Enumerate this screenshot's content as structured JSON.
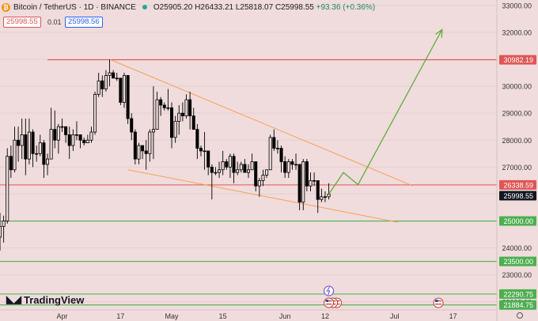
{
  "header": {
    "symbol": "Bitcoin / TetherUS · 1D · BINANCE",
    "open": "O25905.20",
    "high": "H26433.21",
    "low": "L25818.07",
    "close": "C25998.55",
    "change": "+93.36 (+0.36%)",
    "sell_price": "25998.55",
    "spread": "0.01",
    "buy_price": "25998.56"
  },
  "branding": {
    "logo_text": "TradingView"
  },
  "colors": {
    "background": "#f0dcdc",
    "bullish": "#000000",
    "bearish": "#000000",
    "resistance_line": "#e05555",
    "support_line": "#4caf50",
    "channel_line": "#f5a15a",
    "projection_arrow": "#5cad3c"
  },
  "chart_data": {
    "type": "candlestick",
    "symbol": "Bitcoin / TetherUS",
    "interval": "1D",
    "exchange": "BINANCE",
    "y_range": [
      21700,
      33200
    ],
    "y_ticks": [
      22000,
      23000,
      24000,
      25000,
      26000,
      27000,
      28000,
      29000,
      30000,
      31000,
      32000,
      33000
    ],
    "y_tick_labels": [
      "22000.00",
      "23000.00",
      "24000.00",
      "25000.00",
      "26000.00",
      "27000.00",
      "28000.00",
      "29000.00",
      "30000.00",
      "31000.00",
      "32000.00",
      "33000.00"
    ],
    "x_labels": [
      {
        "label": "Apr",
        "date": "2023-04-01"
      },
      {
        "label": "17",
        "date": "2023-04-17"
      },
      {
        "label": "May",
        "date": "2023-05-01"
      },
      {
        "label": "15",
        "date": "2023-05-15"
      },
      {
        "label": "Jun",
        "date": "2023-06-01"
      },
      {
        "label": "12",
        "date": "2023-06-12"
      },
      {
        "label": "Jul",
        "date": "2023-07-01"
      },
      {
        "label": "17",
        "date": "2023-07-17"
      }
    ],
    "x_range": [
      "2023-03-15",
      "2023-07-29"
    ],
    "candles": [
      [
        "2023-03-15",
        24400,
        25300,
        23900,
        24800
      ],
      [
        "2023-03-16",
        24800,
        25200,
        24200,
        25000
      ],
      [
        "2023-03-17",
        25000,
        27700,
        24900,
        27400
      ],
      [
        "2023-03-18",
        27400,
        27800,
        26600,
        26900
      ],
      [
        "2023-03-19",
        26900,
        28500,
        26800,
        28000
      ],
      [
        "2023-03-20",
        28000,
        28500,
        27200,
        27800
      ],
      [
        "2023-03-21",
        27800,
        28800,
        27300,
        28200
      ],
      [
        "2023-03-22",
        28200,
        28800,
        26700,
        27300
      ],
      [
        "2023-03-23",
        27300,
        28800,
        27100,
        28300
      ],
      [
        "2023-03-24",
        28300,
        28400,
        27000,
        27500
      ],
      [
        "2023-03-25",
        27500,
        27800,
        27200,
        27500
      ],
      [
        "2023-03-26",
        27500,
        28200,
        27400,
        27900
      ],
      [
        "2023-03-27",
        27900,
        28000,
        26600,
        27100
      ],
      [
        "2023-03-28",
        27100,
        27500,
        26700,
        27300
      ],
      [
        "2023-03-29",
        27300,
        29200,
        27300,
        28400
      ],
      [
        "2023-03-30",
        28400,
        29100,
        27700,
        28000
      ],
      [
        "2023-03-31",
        28000,
        28600,
        27500,
        28500
      ],
      [
        "2023-04-01",
        28500,
        28800,
        28300,
        28500
      ],
      [
        "2023-04-02",
        28500,
        28500,
        27900,
        28200
      ],
      [
        "2023-04-03",
        28200,
        28500,
        27300,
        27800
      ],
      [
        "2023-04-04",
        27800,
        28400,
        27600,
        28200
      ],
      [
        "2023-04-05",
        28200,
        28700,
        28000,
        28200
      ],
      [
        "2023-04-06",
        28200,
        28200,
        27700,
        28000
      ],
      [
        "2023-04-07",
        28000,
        28100,
        27800,
        27900
      ],
      [
        "2023-04-08",
        27900,
        28200,
        27900,
        28000
      ],
      [
        "2023-04-09",
        28000,
        28500,
        27900,
        28300
      ],
      [
        "2023-04-10",
        28300,
        29800,
        28200,
        29700
      ],
      [
        "2023-04-11",
        29700,
        30500,
        29600,
        30200
      ],
      [
        "2023-04-12",
        30200,
        30400,
        29600,
        29900
      ],
      [
        "2023-04-13",
        29900,
        30600,
        29800,
        30400
      ],
      [
        "2023-04-14",
        30400,
        31000,
        30000,
        30500
      ],
      [
        "2023-04-15",
        30500,
        30600,
        30300,
        30300
      ],
      [
        "2023-04-16",
        30300,
        30500,
        30200,
        30300
      ],
      [
        "2023-04-17",
        30300,
        30300,
        29300,
        29400
      ],
      [
        "2023-04-18",
        29400,
        30500,
        29200,
        30400
      ],
      [
        "2023-04-19",
        30400,
        30400,
        28600,
        28800
      ],
      [
        "2023-04-20",
        28800,
        29000,
        28000,
        28300
      ],
      [
        "2023-04-21",
        28300,
        28400,
        27100,
        27300
      ],
      [
        "2023-04-22",
        27300,
        27900,
        27100,
        27800
      ],
      [
        "2023-04-23",
        27800,
        27800,
        27300,
        27600
      ],
      [
        "2023-04-24",
        27600,
        28000,
        26900,
        27500
      ],
      [
        "2023-04-25",
        27500,
        28400,
        27200,
        28300
      ],
      [
        "2023-04-26",
        28300,
        30000,
        27300,
        28400
      ],
      [
        "2023-04-27",
        28400,
        29800,
        28400,
        29500
      ],
      [
        "2023-04-28",
        29500,
        29600,
        28900,
        29300
      ],
      [
        "2023-04-29",
        29300,
        29400,
        29100,
        29200
      ],
      [
        "2023-04-30",
        29200,
        29900,
        29100,
        29200
      ],
      [
        "2023-05-01",
        29200,
        29400,
        27700,
        28100
      ],
      [
        "2023-05-02",
        28100,
        28900,
        27900,
        28700
      ],
      [
        "2023-05-03",
        28700,
        29300,
        28200,
        29000
      ],
      [
        "2023-05-04",
        29000,
        29400,
        28700,
        28900
      ],
      [
        "2023-05-05",
        28900,
        29700,
        28800,
        29500
      ],
      [
        "2023-05-06",
        29500,
        29800,
        28400,
        28900
      ],
      [
        "2023-05-07",
        28900,
        29200,
        28400,
        28400
      ],
      [
        "2023-05-08",
        28400,
        28600,
        27300,
        27700
      ],
      [
        "2023-05-09",
        27700,
        27800,
        27400,
        27600
      ],
      [
        "2023-05-10",
        27600,
        28300,
        26900,
        27600
      ],
      [
        "2023-05-11",
        27600,
        27600,
        26700,
        27000
      ],
      [
        "2023-05-12",
        27000,
        27100,
        25800,
        26800
      ],
      [
        "2023-05-13",
        26800,
        27000,
        26700,
        26800
      ],
      [
        "2023-05-14",
        26800,
        27200,
        26600,
        26900
      ],
      [
        "2023-05-15",
        26900,
        27600,
        26700,
        27200
      ],
      [
        "2023-05-16",
        27200,
        27300,
        26900,
        27000
      ],
      [
        "2023-05-17",
        27000,
        27500,
        26600,
        27400
      ],
      [
        "2023-05-18",
        27400,
        27500,
        26400,
        26800
      ],
      [
        "2023-05-19",
        26800,
        27200,
        26700,
        26900
      ],
      [
        "2023-05-20",
        26900,
        27200,
        26800,
        27100
      ],
      [
        "2023-05-21",
        27100,
        27300,
        26800,
        26800
      ],
      [
        "2023-05-22",
        26800,
        27100,
        26600,
        26900
      ],
      [
        "2023-05-23",
        26900,
        27500,
        26900,
        27200
      ],
      [
        "2023-05-24",
        27200,
        27200,
        26100,
        26300
      ],
      [
        "2023-05-25",
        26300,
        26600,
        25900,
        26500
      ],
      [
        "2023-05-26",
        26500,
        26900,
        26300,
        26700
      ],
      [
        "2023-05-27",
        26700,
        26900,
        26600,
        26900
      ],
      [
        "2023-05-28",
        26900,
        28200,
        26900,
        28100
      ],
      [
        "2023-05-29",
        28100,
        28400,
        27600,
        27700
      ],
      [
        "2023-05-30",
        27700,
        28000,
        27500,
        27700
      ],
      [
        "2023-05-31",
        27700,
        27800,
        26800,
        27200
      ],
      [
        "2023-06-01",
        27200,
        27400,
        26600,
        26800
      ],
      [
        "2023-06-02",
        26800,
        27300,
        26600,
        27200
      ],
      [
        "2023-06-03",
        27200,
        27300,
        26900,
        27100
      ],
      [
        "2023-06-04",
        27100,
        27500,
        26900,
        27100
      ],
      [
        "2023-06-05",
        27100,
        27100,
        25400,
        25700
      ],
      [
        "2023-06-06",
        25700,
        27300,
        25400,
        27200
      ],
      [
        "2023-06-07",
        27200,
        27300,
        26100,
        26300
      ],
      [
        "2023-06-08",
        26300,
        26800,
        26100,
        26500
      ],
      [
        "2023-06-09",
        26500,
        26800,
        26300,
        26500
      ],
      [
        "2023-06-10",
        26500,
        26500,
        25300,
        25800
      ],
      [
        "2023-06-11",
        25800,
        26200,
        25700,
        25900
      ],
      [
        "2023-06-12",
        25900,
        26100,
        25700,
        25900
      ],
      [
        "2023-06-13",
        25900,
        26400,
        25800,
        25998.55
      ]
    ],
    "horizontal_levels": [
      {
        "price": 30982.19,
        "label": "30982.19",
        "kind": "resistance"
      },
      {
        "price": 26338.59,
        "label": "26338.59",
        "kind": "resistance"
      },
      {
        "price": 25000.0,
        "label": "25000.00",
        "kind": "support"
      },
      {
        "price": 23500.0,
        "label": "23500.00",
        "kind": "support"
      },
      {
        "price": 22290.75,
        "label": "22290.75",
        "kind": "support"
      },
      {
        "price": 21884.75,
        "label": "21884.75",
        "kind": "support"
      }
    ],
    "current_price": {
      "price": 25998.55,
      "label": "25998.55"
    },
    "channel": [
      {
        "from": [
          "2023-04-14",
          31000
        ],
        "to": [
          "2023-07-06",
          26300
        ]
      },
      {
        "from": [
          "2023-04-19",
          26900
        ],
        "to": [
          "2023-07-02",
          24950
        ]
      }
    ],
    "projection": [
      [
        "2023-06-13",
        26000
      ],
      [
        "2023-06-17",
        26800
      ],
      [
        "2023-06-21",
        26350
      ],
      [
        "2023-07-14",
        32100
      ]
    ],
    "events": [
      {
        "date": "2023-06-13",
        "kind": "flash"
      },
      {
        "date": "2023-06-13",
        "kind": "us-flag"
      },
      {
        "date": "2023-07-13",
        "kind": "us-flag"
      }
    ]
  }
}
